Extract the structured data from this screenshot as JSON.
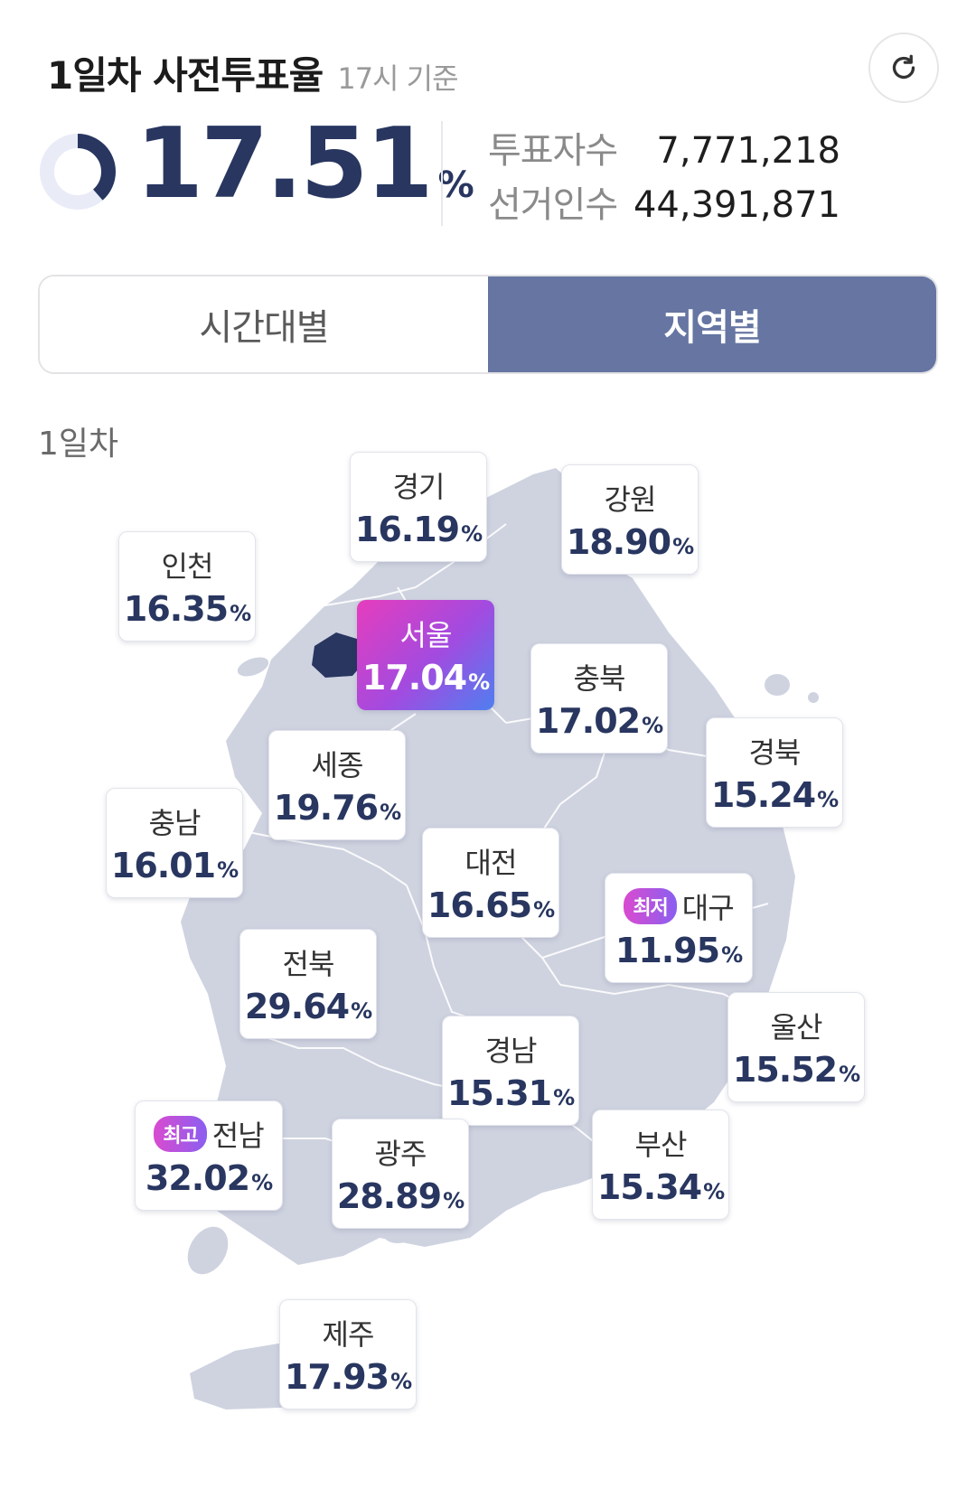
{
  "header": {
    "title": "1일차 사전투표율",
    "basis": "17시 기준",
    "refresh_icon": "refresh-icon"
  },
  "summary": {
    "rate": "17.51",
    "rate_unit": "%",
    "rate_fraction": 0.1751,
    "voters_label": "투표자수",
    "voters_value": "7,771,218",
    "electors_label": "선거인수",
    "electors_value": "44,391,871"
  },
  "tabs": [
    {
      "label": "시간대별",
      "active": false
    },
    {
      "label": "지역별",
      "active": true
    }
  ],
  "day_label": "1일차",
  "badges": {
    "lowest": "최저",
    "highest": "최고"
  },
  "colors": {
    "accent": "#283660",
    "active_tab": "#6675a2",
    "map_fill": "#cfd3e0",
    "seoul_fill": "#283660"
  },
  "regions": [
    {
      "name": "경기",
      "value": "16.19",
      "unit": "%"
    },
    {
      "name": "강원",
      "value": "18.90",
      "unit": "%"
    },
    {
      "name": "인천",
      "value": "16.35",
      "unit": "%"
    },
    {
      "name": "서울",
      "value": "17.04",
      "unit": "%"
    },
    {
      "name": "충북",
      "value": "17.02",
      "unit": "%"
    },
    {
      "name": "경북",
      "value": "15.24",
      "unit": "%"
    },
    {
      "name": "세종",
      "value": "19.76",
      "unit": "%"
    },
    {
      "name": "충남",
      "value": "16.01",
      "unit": "%"
    },
    {
      "name": "대전",
      "value": "16.65",
      "unit": "%"
    },
    {
      "name": "대구",
      "value": "11.95",
      "unit": "%"
    },
    {
      "name": "전북",
      "value": "29.64",
      "unit": "%"
    },
    {
      "name": "울산",
      "value": "15.52",
      "unit": "%"
    },
    {
      "name": "경남",
      "value": "15.31",
      "unit": "%"
    },
    {
      "name": "전남",
      "value": "32.02",
      "unit": "%"
    },
    {
      "name": "광주",
      "value": "28.89",
      "unit": "%"
    },
    {
      "name": "부산",
      "value": "15.34",
      "unit": "%"
    },
    {
      "name": "제주",
      "value": "17.93",
      "unit": "%"
    }
  ]
}
